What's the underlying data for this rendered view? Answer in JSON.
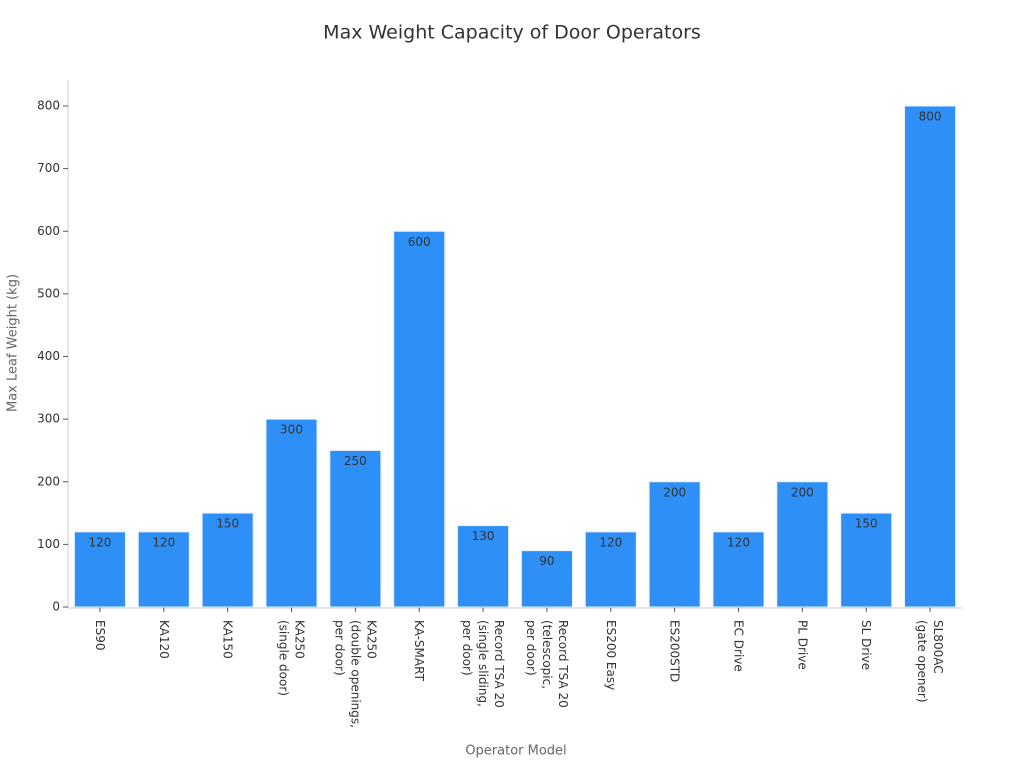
{
  "chart_data": {
    "type": "bar",
    "title": "Max Weight Capacity of Door Operators",
    "x_label": "Operator Model",
    "y_label": "Max Leaf Weight (kg)",
    "categories": [
      "ES90",
      "KA120",
      "KA150",
      "KA250\n(single door)",
      "KA250\n(double openings,\nper door)",
      "KA-SMART",
      "Record TSA 20\n(single sliding,\nper door)",
      "Record TSA 20\n(telescopic,\nper door)",
      "ES200 Easy",
      "ES200STD",
      "EC Drive",
      "PL Drive",
      "SL Drive",
      "SL800AC\n(gate opener)"
    ],
    "values": [
      120,
      120,
      150,
      300,
      250,
      600,
      130,
      90,
      120,
      200,
      120,
      200,
      150,
      800
    ],
    "color": "#2e90f7",
    "ylim": [
      0,
      800
    ],
    "yticks": [
      0,
      100,
      200,
      300,
      400,
      500,
      600,
      700,
      800
    ],
    "grid": false
  }
}
